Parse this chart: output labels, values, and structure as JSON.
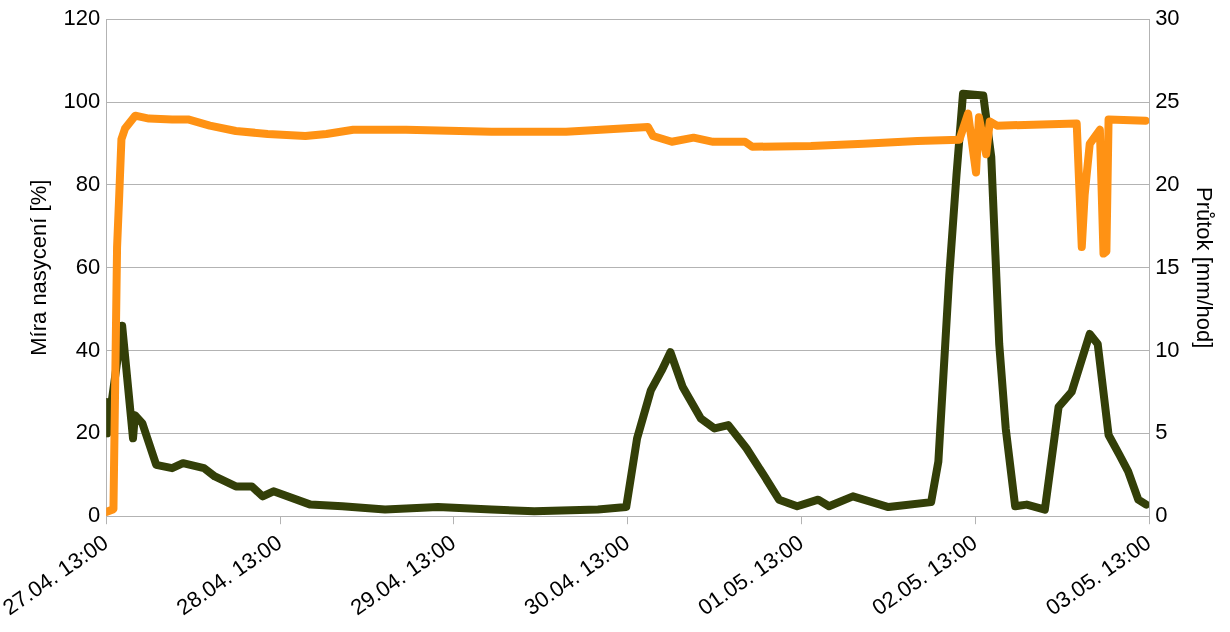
{
  "chart_data": {
    "type": "line",
    "ylabel": "Míra nasycení [%]",
    "y2label": "Průtok [mm/hod]",
    "xlim": [
      "--04-27T13:00",
      "--05-03T13:00"
    ],
    "xticks": [
      {
        "value": "--04-27T13:00",
        "label": "27.04. 13:00"
      },
      {
        "value": "--04-28T13:00",
        "label": "28.04. 13:00"
      },
      {
        "value": "--04-29T13:00",
        "label": "29.04. 13:00"
      },
      {
        "value": "--04-30T13:00",
        "label": "30.04. 13:00"
      },
      {
        "value": "--05-01T13:00",
        "label": "01.05. 13:00"
      },
      {
        "value": "--05-02T13:00",
        "label": "02.05. 13:00"
      },
      {
        "value": "--05-03T13:00",
        "label": "03.05. 13:00"
      }
    ],
    "ylim": [
      0,
      120
    ],
    "yticks": [
      0,
      20,
      40,
      60,
      80,
      100,
      120
    ],
    "y2lim": [
      0,
      30
    ],
    "y2ticks": [
      0,
      5,
      10,
      15,
      20,
      25,
      30
    ],
    "grid": "y",
    "legend": false,
    "marker": "none",
    "line_style": "solid",
    "series": [
      {
        "color": "#ff9214",
        "axis": "y",
        "x": [
          "--04-27T13:00",
          "--04-27T14:00",
          "--04-27T14:30",
          "--04-27T14:48",
          "--04-27T15:06",
          "--04-27T15:36",
          "--04-27T17:00",
          "--04-27T18:54",
          "--04-27T22:06",
          "--04-28T00:18",
          "--04-28T03:18",
          "--04-28T06:54",
          "--04-28T11:18",
          "--04-28T16:30",
          "--04-28T19:24",
          "--04-28T23:06",
          "--04-29T06:24",
          "--04-29T18:12",
          "--04-30T04:30",
          "--04-30T15:48",
          "--04-30T16:30",
          "--04-30T19:06",
          "--04-30T22:06",
          "--05-01T00:48",
          "--05-01T05:12",
          "--05-01T06:12",
          "--05-01T14:18",
          "--05-01T21:36",
          "--05-02T05:00",
          "--05-02T10:48",
          "--05-02T12:00",
          "--05-02T13:06",
          "--05-02T13:30",
          "--05-02T14:30",
          "--05-02T15:00",
          "--05-02T16:00",
          "--05-03T03:00",
          "--05-03T03:42",
          "--05-03T04:06",
          "--05-03T04:48",
          "--05-03T06:12",
          "--05-03T06:42",
          "--05-03T07:06",
          "--05-03T07:24",
          "--05-03T12:30"
        ],
        "values": [
          1,
          1.7,
          65,
          77.6,
          91,
          93.6,
          96.7,
          96,
          95.8,
          95.8,
          94.3,
          93,
          92.3,
          91.8,
          92.3,
          93.3,
          93.3,
          92.8,
          92.8,
          94,
          91.8,
          90.4,
          91.4,
          90.4,
          90.4,
          89.2,
          89.4,
          89.9,
          90.6,
          90.9,
          97.2,
          83,
          96.3,
          87.4,
          95.3,
          94.3,
          94.8,
          65,
          77.6,
          89.9,
          93.3,
          63.4,
          63.9,
          95.8,
          95.5
        ]
      },
      {
        "color": "#333f08",
        "axis": "y2",
        "x": [
          "--04-27T13:00",
          "--04-27T13:09",
          "--04-27T15:12",
          "--04-27T16:42",
          "--04-27T16:58",
          "--04-27T18:00",
          "--04-27T19:54",
          "--04-27T22:06",
          "--04-27T23:36",
          "--04-28T02:30",
          "--04-28T04:00",
          "--04-28T06:54",
          "--04-28T09:06",
          "--04-28T10:36",
          "--04-28T12:06",
          "--04-28T17:12",
          "--04-28T21:36",
          "--04-29T03:30",
          "--04-29T10:48",
          "--04-29T18:12",
          "--04-30T00:06",
          "--04-30T08:54",
          "--04-30T12:48",
          "--04-30T14:18",
          "--04-30T16:12",
          "--04-30T17:42",
          "--04-30T18:54",
          "--04-30T20:36",
          "--04-30T23:06",
          "--05-01T01:00",
          "--05-01T02:54",
          "--05-01T05:24",
          "--05-01T07:54",
          "--05-01T09:54",
          "--05-01T12:24",
          "--05-01T15:18",
          "--05-01T16:48",
          "--05-01T20:06",
          "--05-02T01:00",
          "--05-02T06:54",
          "--05-02T07:54",
          "--05-02T09:24",
          "--05-02T10:24",
          "--05-02T11:18",
          "--05-02T14:06",
          "--05-02T15:12",
          "--05-02T16:18",
          "--05-02T17:12",
          "--05-02T18:30",
          "--05-02T20:06",
          "--05-02T22:36",
          "--05-03T00:30",
          "--05-03T02:18",
          "--05-03T04:48",
          "--05-03T05:54",
          "--05-03T07:24",
          "--05-03T08:54",
          "--05-03T10:06",
          "--05-03T11:30",
          "--05-03T12:36"
        ],
        "values": [
          6.9,
          5.0,
          11.5,
          4.7,
          6.1,
          5.6,
          3.1,
          2.9,
          3.2,
          2.9,
          2.4,
          1.8,
          1.8,
          1.2,
          1.5,
          0.7,
          0.6,
          0.4,
          0.55,
          0.4,
          0.3,
          0.4,
          0.55,
          4.7,
          7.6,
          8.8,
          9.9,
          7.8,
          5.9,
          5.3,
          5.5,
          4.1,
          2.4,
          1.0,
          0.6,
          1.0,
          0.6,
          1.2,
          0.55,
          0.85,
          3.3,
          14.5,
          20.6,
          25.5,
          25.4,
          21.7,
          10.4,
          5.3,
          0.6,
          0.7,
          0.4,
          6.6,
          7.5,
          11.0,
          10.4,
          4.9,
          3.7,
          2.7,
          1.0,
          0.7
        ]
      }
    ]
  }
}
